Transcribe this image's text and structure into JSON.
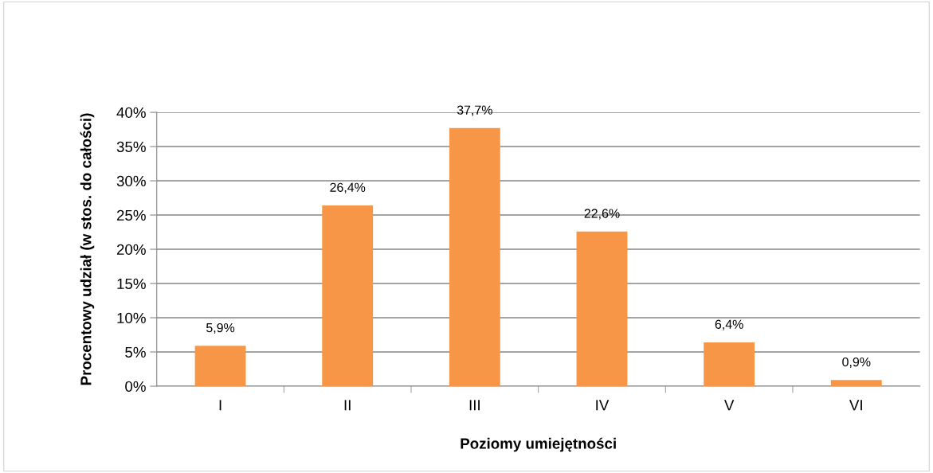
{
  "chart_data": {
    "type": "bar",
    "xlabel": "Poziomy umiejętności",
    "ylabel": "Procentowy udział (w stos. do całości)",
    "categories": [
      "I",
      "II",
      "III",
      "IV",
      "V",
      "VI"
    ],
    "values": [
      5.9,
      26.4,
      37.7,
      22.6,
      6.4,
      0.9
    ],
    "value_labels": [
      "5,9%",
      "26,4%",
      "37,7%",
      "22,6%",
      "6,4%",
      "0,9%"
    ],
    "color": "#f79646",
    "ylim": [
      0,
      40
    ],
    "yticks": [
      {
        "value": 0,
        "label": "0%"
      },
      {
        "value": 5,
        "label": "5%"
      },
      {
        "value": 10,
        "label": "10%"
      },
      {
        "value": 15,
        "label": "15%"
      },
      {
        "value": 20,
        "label": "20%"
      },
      {
        "value": 25,
        "label": "25%"
      },
      {
        "value": 30,
        "label": "30%"
      },
      {
        "value": 35,
        "label": "35%"
      },
      {
        "value": 40,
        "label": "40%"
      }
    ],
    "grid": "y",
    "legend": false
  }
}
